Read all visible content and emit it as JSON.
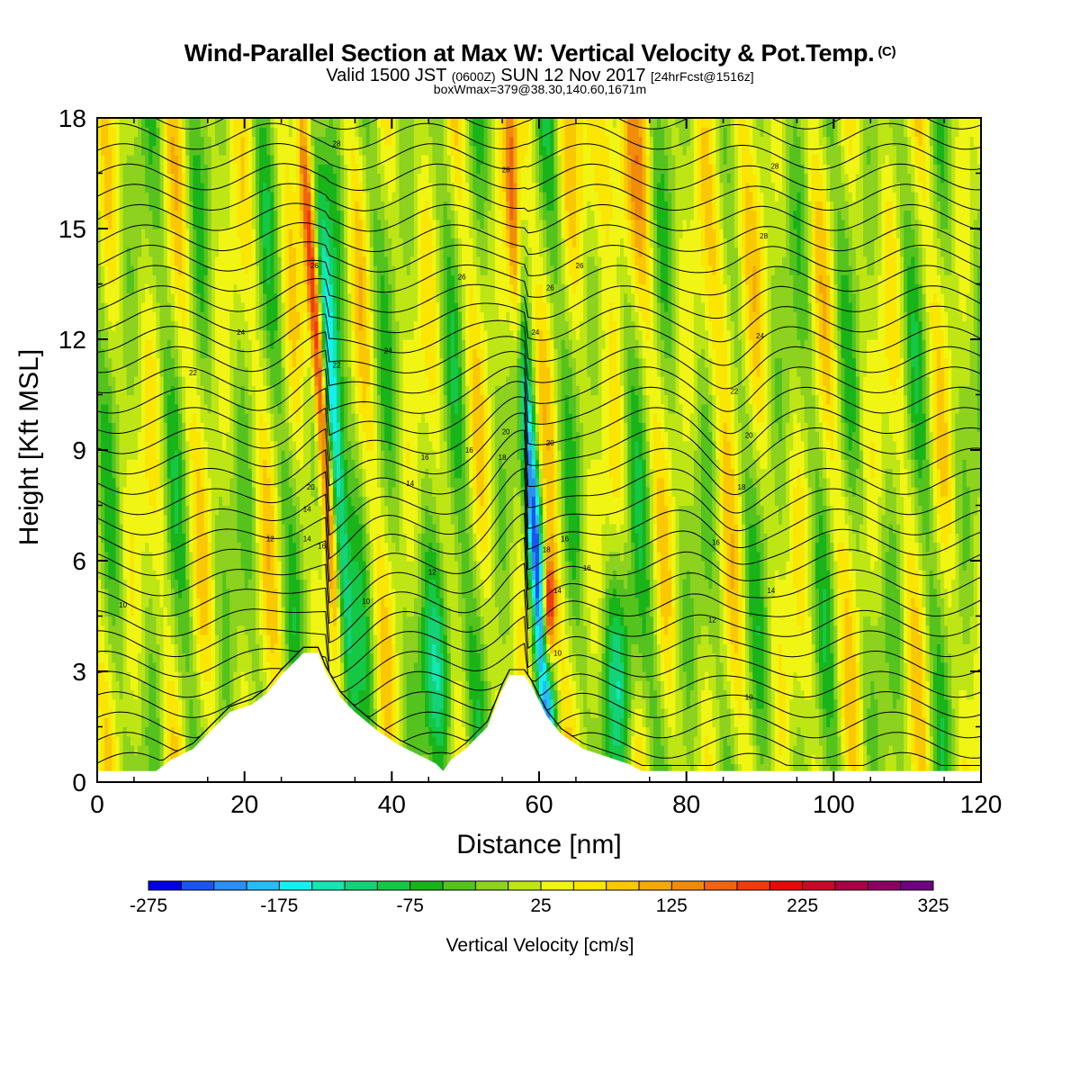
{
  "header": {
    "title": "Wind-Parallel Section at Max W: Vertical Velocity & Pot.Temp.",
    "copyright": "(C)",
    "subtitle_main": "Valid 1500 JST",
    "subtitle_utc": "(0600Z)",
    "subtitle_date": "SUN 12 Nov 2017",
    "subtitle_fcst": "[24hrFcst@1516z]",
    "box_line": "boxWmax=379@38.30,140.60,1671m"
  },
  "chart_data": {
    "type": "heatmap",
    "title": "Wind-Parallel Section at Max W: Vertical Velocity & Pot.Temp.",
    "xlabel": "Distance [nm]",
    "ylabel": "Height [Kft MSL]",
    "xlim": [
      0,
      120
    ],
    "ylim": [
      0,
      18
    ],
    "x_ticks": [
      0,
      20,
      40,
      60,
      80,
      100,
      120
    ],
    "y_ticks": [
      0,
      3,
      6,
      9,
      12,
      15,
      18
    ],
    "colorbar": {
      "label": "Vertical Velocity [cm/s]",
      "min": -275,
      "max": 325,
      "step": 25,
      "tick_labels": [
        -275,
        -175,
        -75,
        25,
        125,
        225,
        325
      ],
      "colors": [
        "#0000e6",
        "#1a55f0",
        "#2a8ef5",
        "#26bdf7",
        "#14f0f0",
        "#14e6b4",
        "#14d278",
        "#14c846",
        "#19b419",
        "#55c31e",
        "#8cd21e",
        "#bee614",
        "#f0f514",
        "#fae600",
        "#fac800",
        "#f5aa0a",
        "#f08c0a",
        "#f06414",
        "#f03c0a",
        "#e60a0a",
        "#c80a28",
        "#aa0046",
        "#8c0064",
        "#6e0082"
      ]
    },
    "features": {
      "updrafts_x": [
        30,
        57,
        61
      ],
      "downdrafts_x": [
        32,
        59
      ],
      "terrain_peaks": [
        {
          "x": 28,
          "h": 3.5
        },
        {
          "x": 56,
          "h": 2.9
        }
      ]
    },
    "contour_labels": [
      {
        "x": 3.5,
        "y": 4.8,
        "text": "10"
      },
      {
        "x": 36.5,
        "y": 4.9,
        "text": "10"
      },
      {
        "x": 88.5,
        "y": 2.3,
        "text": "10"
      },
      {
        "x": 62.5,
        "y": 3.5,
        "text": "10"
      },
      {
        "x": 23.5,
        "y": 6.6,
        "text": "12"
      },
      {
        "x": 45.5,
        "y": 5.7,
        "text": "12"
      },
      {
        "x": 83.5,
        "y": 4.4,
        "text": "12"
      },
      {
        "x": 28.5,
        "y": 7.4,
        "text": "14"
      },
      {
        "x": 42.5,
        "y": 8.1,
        "text": "14"
      },
      {
        "x": 91.5,
        "y": 5.2,
        "text": "14"
      },
      {
        "x": 62.5,
        "y": 5.2,
        "text": "14"
      },
      {
        "x": 28.5,
        "y": 6.6,
        "text": "14"
      },
      {
        "x": 30.5,
        "y": 6.4,
        "text": "16"
      },
      {
        "x": 44.5,
        "y": 8.8,
        "text": "16"
      },
      {
        "x": 50.5,
        "y": 9.0,
        "text": "16"
      },
      {
        "x": 84,
        "y": 6.5,
        "text": "16"
      },
      {
        "x": 66.5,
        "y": 5.8,
        "text": "16"
      },
      {
        "x": 63.5,
        "y": 6.6,
        "text": "16"
      },
      {
        "x": 61,
        "y": 6.3,
        "text": "18"
      },
      {
        "x": 55,
        "y": 8.8,
        "text": "18"
      },
      {
        "x": 87.5,
        "y": 8.0,
        "text": "18"
      },
      {
        "x": 29,
        "y": 8.0,
        "text": "20"
      },
      {
        "x": 55.5,
        "y": 9.5,
        "text": "20"
      },
      {
        "x": 61.5,
        "y": 9.2,
        "text": "20"
      },
      {
        "x": 88.5,
        "y": 9.4,
        "text": "20"
      },
      {
        "x": 86.5,
        "y": 10.6,
        "text": "22"
      },
      {
        "x": 32.5,
        "y": 11.3,
        "text": "22"
      },
      {
        "x": 13,
        "y": 11.1,
        "text": "22"
      },
      {
        "x": 19.5,
        "y": 12.2,
        "text": "24"
      },
      {
        "x": 39.5,
        "y": 11.7,
        "text": "24"
      },
      {
        "x": 59.5,
        "y": 12.2,
        "text": "24"
      },
      {
        "x": 90,
        "y": 12.1,
        "text": "24"
      },
      {
        "x": 29.5,
        "y": 14.0,
        "text": "26"
      },
      {
        "x": 61.5,
        "y": 13.4,
        "text": "26"
      },
      {
        "x": 49.5,
        "y": 13.7,
        "text": "26"
      },
      {
        "x": 65.5,
        "y": 14.0,
        "text": "26"
      },
      {
        "x": 90.5,
        "y": 14.8,
        "text": "28"
      },
      {
        "x": 55.5,
        "y": 16.6,
        "text": "28"
      },
      {
        "x": 32.5,
        "y": 17.3,
        "text": "28"
      },
      {
        "x": 92,
        "y": 16.7,
        "text": "28"
      }
    ]
  }
}
